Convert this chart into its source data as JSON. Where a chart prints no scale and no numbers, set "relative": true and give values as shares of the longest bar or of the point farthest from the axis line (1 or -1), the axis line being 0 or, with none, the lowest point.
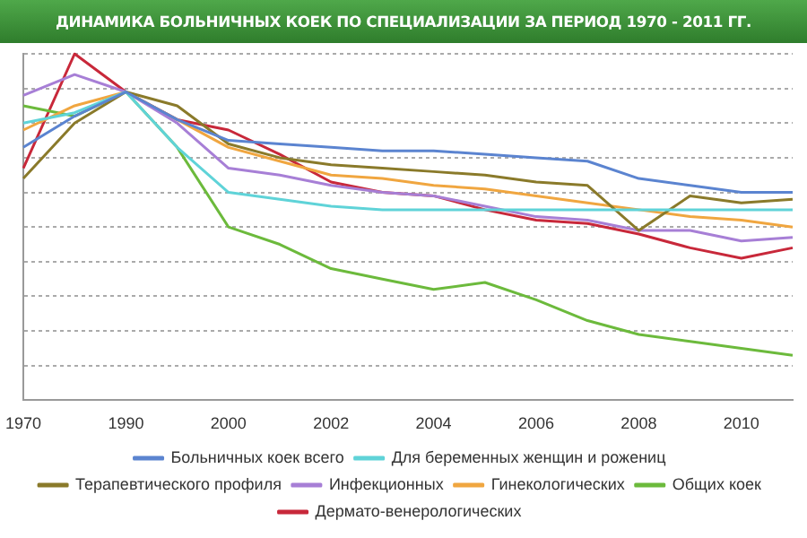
{
  "chart_data": {
    "type": "line",
    "title": "ДИНАМИКА БОЛЬНИЧНЫХ КОЕК ПО СПЕЦИАЛИЗАЦИИ ЗА ПЕРИОД 1970 - 2011 ГГ.",
    "relative": true,
    "grid": "y",
    "legend": "bottom",
    "marker": "none",
    "line_style": "solid",
    "categories": [
      "1970",
      null,
      "1990",
      null,
      "2000",
      null,
      "2002",
      null,
      "2004",
      null,
      "2006",
      null,
      "2008",
      null,
      "2010",
      null
    ],
    "series": [
      {
        "name": "Больничных коек всего",
        "color": "#5b84d0",
        "values": [
          0.73,
          0.82,
          0.89,
          0.81,
          0.75,
          0.74,
          0.73,
          0.72,
          0.72,
          0.71,
          0.7,
          0.69,
          0.64,
          0.62,
          0.6,
          0.6
        ]
      },
      {
        "name": "Для беременных женщин и рожениц",
        "color": "#5fd3d8",
        "values": [
          0.8,
          0.83,
          0.89,
          0.73,
          0.6,
          0.58,
          0.56,
          0.55,
          0.55,
          0.55,
          0.55,
          0.55,
          0.55,
          0.55,
          0.55,
          0.55
        ]
      },
      {
        "name": "Терапевтического профиля",
        "color": "#8a7a2a",
        "values": [
          0.64,
          0.8,
          0.89,
          0.85,
          0.74,
          0.7,
          0.68,
          0.67,
          0.66,
          0.65,
          0.63,
          0.62,
          0.49,
          0.59,
          0.57,
          0.58
        ]
      },
      {
        "name": "Инфекционных",
        "color": "#a77fd6",
        "values": [
          0.88,
          0.94,
          0.89,
          0.8,
          0.67,
          0.65,
          0.62,
          0.6,
          0.59,
          0.56,
          0.53,
          0.52,
          0.49,
          0.49,
          0.46,
          0.47
        ]
      },
      {
        "name": "Гинекологических",
        "color": "#f0a640",
        "values": [
          0.78,
          0.85,
          0.89,
          0.81,
          0.73,
          0.69,
          0.65,
          0.64,
          0.62,
          0.61,
          0.59,
          0.57,
          0.55,
          0.53,
          0.52,
          0.5
        ]
      },
      {
        "name": "Общих коек",
        "color": "#6cba3c",
        "values": [
          0.85,
          0.82,
          0.89,
          0.73,
          0.5,
          0.45,
          0.38,
          0.35,
          0.32,
          0.34,
          0.29,
          0.23,
          0.19,
          0.17,
          0.15,
          0.13
        ]
      },
      {
        "name": "Дермато-венерологических",
        "color": "#c8283a",
        "values": [
          0.67,
          1.0,
          0.89,
          0.81,
          0.78,
          0.71,
          0.63,
          0.6,
          0.59,
          0.55,
          0.52,
          0.51,
          0.48,
          0.44,
          0.41,
          0.44
        ]
      }
    ]
  }
}
